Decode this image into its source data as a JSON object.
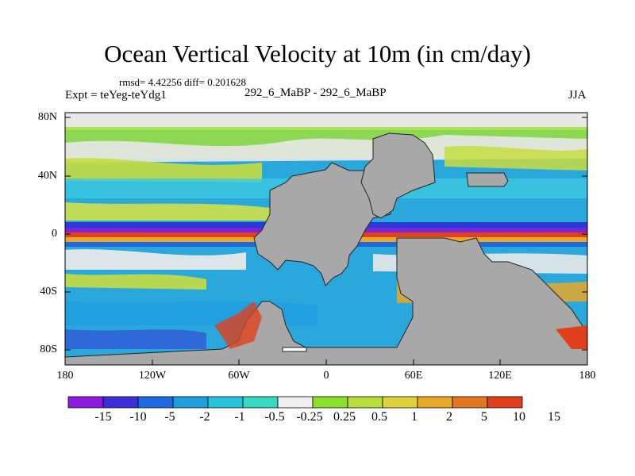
{
  "header": {
    "title": "Ocean Vertical Velocity at 10m (in cm/day)",
    "stats": "rmsd= 4.42256 diff= 0.201628",
    "experiment": "Expt = teYeg-teYdg1",
    "comparison": "292_6_MaBP - 292_6_MaBP",
    "season": "JJA"
  },
  "axes": {
    "y_ticks": [
      "80N",
      "40N",
      "0",
      "40S",
      "80S"
    ],
    "x_ticks": [
      "180",
      "120W",
      "60W",
      "0",
      "60E",
      "120E",
      "180"
    ]
  },
  "colorbar": {
    "colors": [
      "#8c1be0",
      "#3d2fd8",
      "#1f68e0",
      "#1f9ee0",
      "#26c4dc",
      "#33d9c0",
      "#eeeeee",
      "#8ae02a",
      "#b8dc3c",
      "#e0d23a",
      "#e8a828",
      "#e47820",
      "#e0401c"
    ],
    "labels": [
      "-15",
      "-10",
      "-5",
      "-2",
      "-1",
      "-0.5",
      "-0.25",
      "0.25",
      "0.5",
      "1",
      "2",
      "5",
      "10",
      "15"
    ]
  },
  "land_color": "#a8a8a8"
}
